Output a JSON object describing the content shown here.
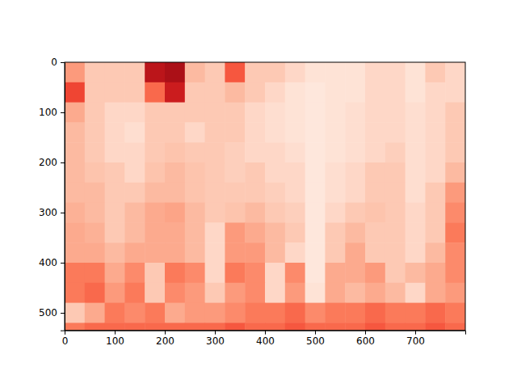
{
  "chart_data": {
    "type": "heatmap",
    "color": "Reds",
    "color_range": [
      0,
      1
    ],
    "xlim": [
      0,
      800
    ],
    "ylim": [
      535,
      0
    ],
    "xticks": [
      0,
      100,
      200,
      300,
      400,
      500,
      600,
      700
    ],
    "yticks": [
      0,
      100,
      200,
      300,
      400,
      500
    ],
    "x_edges": [
      0,
      40,
      80,
      120,
      160,
      200,
      240,
      280,
      320,
      360,
      400,
      440,
      480,
      520,
      560,
      600,
      640,
      680,
      720,
      760,
      800
    ],
    "y_edges": [
      0,
      40,
      80,
      120,
      160,
      200,
      240,
      280,
      320,
      360,
      400,
      440,
      480,
      520,
      535
    ],
    "cells": [
      [
        0.35,
        0.2,
        0.2,
        0.2,
        0.8,
        0.85,
        0.25,
        0.2,
        0.55,
        0.2,
        0.2,
        0.15,
        0.1,
        0.1,
        0.1,
        0.15,
        0.15,
        0.1,
        0.2,
        0.15
      ],
      [
        0.6,
        0.2,
        0.2,
        0.2,
        0.5,
        0.75,
        0.2,
        0.2,
        0.25,
        0.2,
        0.15,
        0.1,
        0.08,
        0.1,
        0.1,
        0.15,
        0.15,
        0.1,
        0.15,
        0.15
      ],
      [
        0.3,
        0.2,
        0.15,
        0.15,
        0.2,
        0.2,
        0.2,
        0.2,
        0.2,
        0.15,
        0.12,
        0.1,
        0.08,
        0.1,
        0.12,
        0.15,
        0.15,
        0.12,
        0.15,
        0.2
      ],
      [
        0.25,
        0.2,
        0.15,
        0.12,
        0.2,
        0.2,
        0.15,
        0.2,
        0.2,
        0.15,
        0.12,
        0.1,
        0.08,
        0.1,
        0.12,
        0.15,
        0.15,
        0.12,
        0.15,
        0.2
      ],
      [
        0.25,
        0.2,
        0.15,
        0.15,
        0.2,
        0.22,
        0.2,
        0.2,
        0.18,
        0.15,
        0.15,
        0.12,
        0.08,
        0.1,
        0.12,
        0.15,
        0.18,
        0.12,
        0.15,
        0.2
      ],
      [
        0.25,
        0.22,
        0.2,
        0.15,
        0.22,
        0.25,
        0.22,
        0.2,
        0.18,
        0.2,
        0.15,
        0.15,
        0.08,
        0.12,
        0.15,
        0.2,
        0.2,
        0.12,
        0.15,
        0.25
      ],
      [
        0.25,
        0.25,
        0.2,
        0.2,
        0.25,
        0.25,
        0.22,
        0.2,
        0.2,
        0.2,
        0.18,
        0.15,
        0.08,
        0.12,
        0.15,
        0.2,
        0.2,
        0.12,
        0.2,
        0.35
      ],
      [
        0.28,
        0.25,
        0.2,
        0.25,
        0.3,
        0.32,
        0.25,
        0.2,
        0.22,
        0.25,
        0.2,
        0.18,
        0.08,
        0.15,
        0.2,
        0.22,
        0.2,
        0.15,
        0.2,
        0.4
      ],
      [
        0.3,
        0.28,
        0.2,
        0.25,
        0.3,
        0.3,
        0.25,
        0.15,
        0.35,
        0.3,
        0.25,
        0.2,
        0.08,
        0.2,
        0.25,
        0.2,
        0.2,
        0.15,
        0.2,
        0.45
      ],
      [
        0.3,
        0.3,
        0.25,
        0.3,
        0.3,
        0.3,
        0.25,
        0.15,
        0.35,
        0.35,
        0.25,
        0.15,
        0.08,
        0.2,
        0.3,
        0.2,
        0.2,
        0.15,
        0.25,
        0.4
      ],
      [
        0.45,
        0.45,
        0.3,
        0.4,
        0.2,
        0.45,
        0.4,
        0.15,
        0.45,
        0.4,
        0.15,
        0.4,
        0.08,
        0.3,
        0.3,
        0.35,
        0.2,
        0.25,
        0.3,
        0.4
      ],
      [
        0.45,
        0.5,
        0.35,
        0.45,
        0.2,
        0.4,
        0.35,
        0.2,
        0.35,
        0.4,
        0.15,
        0.35,
        0.1,
        0.3,
        0.25,
        0.3,
        0.25,
        0.15,
        0.3,
        0.35
      ],
      [
        0.2,
        0.3,
        0.45,
        0.4,
        0.45,
        0.3,
        0.35,
        0.35,
        0.4,
        0.45,
        0.45,
        0.5,
        0.4,
        0.45,
        0.45,
        0.5,
        0.45,
        0.45,
        0.5,
        0.45
      ],
      [
        0.45,
        0.5,
        0.5,
        0.5,
        0.5,
        0.5,
        0.5,
        0.5,
        0.55,
        0.5,
        0.5,
        0.55,
        0.5,
        0.5,
        0.5,
        0.55,
        0.5,
        0.5,
        0.55,
        0.5
      ]
    ]
  }
}
